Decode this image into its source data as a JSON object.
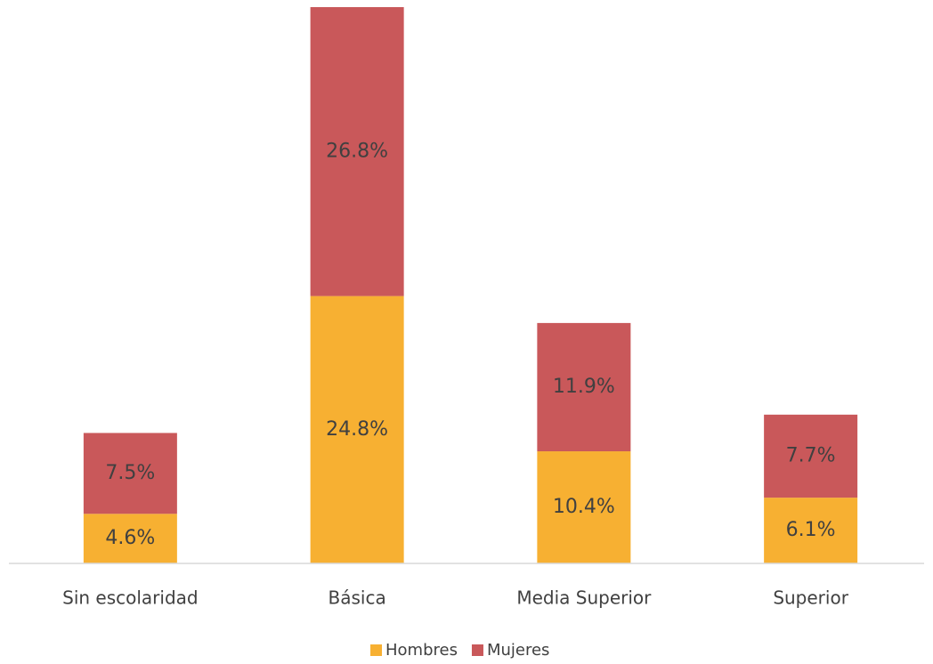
{
  "chart_data": {
    "type": "stacked_bar",
    "categories": [
      "Sin escolaridad",
      "Básica",
      "Media Superior",
      "Superior"
    ],
    "series": [
      {
        "name": "Hombres",
        "color": "#f7b032",
        "values": [
          4.6,
          24.8,
          10.4,
          6.1
        ],
        "value_labels": [
          "4.6%",
          "24.8%",
          "10.4%",
          "6.1%"
        ]
      },
      {
        "name": "Mujeres",
        "color": "#c9585a",
        "values": [
          7.5,
          26.8,
          11.9,
          7.7
        ],
        "value_labels": [
          "7.5%",
          "26.8%",
          "11.9%",
          "7.7%"
        ]
      }
    ],
    "legend": "bottom"
  }
}
